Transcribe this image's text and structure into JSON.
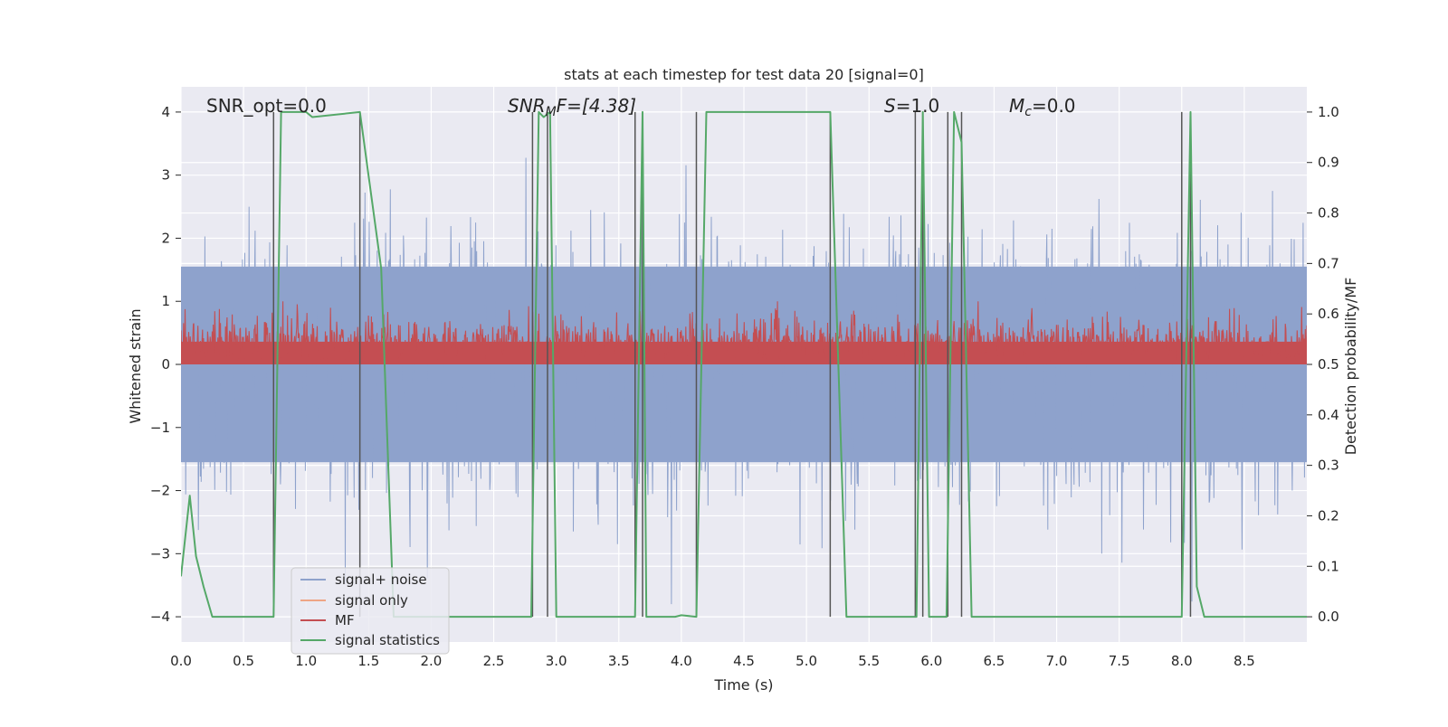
{
  "chart_data": {
    "type": "line",
    "title": "stats at each timestep for test data 20 [signal=0]",
    "xlabel": "Time (s)",
    "ylabel": "Whitened strain",
    "y2label": "Detection probability/MF",
    "xlim": [
      0.0,
      9.0
    ],
    "ylim": [
      -4.4,
      4.4
    ],
    "y2lim": [
      -0.05,
      1.05
    ],
    "x_ticks": [
      "0.0",
      "0.5",
      "1.0",
      "1.5",
      "2.0",
      "2.5",
      "3.0",
      "3.5",
      "4.0",
      "4.5",
      "5.0",
      "5.5",
      "6.0",
      "6.5",
      "7.0",
      "7.5",
      "8.0",
      "8.5"
    ],
    "y_ticks": [
      "4",
      "3",
      "2",
      "1",
      "0",
      "−1",
      "−2",
      "−3",
      "−4"
    ],
    "y2_ticks": [
      "1.0",
      "0.9",
      "0.8",
      "0.7",
      "0.6",
      "0.5",
      "0.4",
      "0.3",
      "0.2",
      "0.1",
      "0.0"
    ],
    "grid": true,
    "legend_position": "lower-left",
    "annotations": {
      "snr_opt": "SNR_opt=0.0",
      "snr_mf_main": "SNR",
      "snr_mf_sub": "M",
      "snr_mf_tail": "F=[4.38]",
      "s_main": "S",
      "s_tail": "=1.0",
      "mc_main": "M",
      "mc_sub": "c",
      "mc_tail": "=0.0"
    },
    "series": [
      {
        "name": "signal+ noise",
        "color": "#8ea2cc",
        "note": "whitened noise, amplitude ~±2, peaks to ±3.5"
      },
      {
        "name": "signal only",
        "color": "#eea585",
        "values": []
      },
      {
        "name": "MF",
        "color": "#c44e52",
        "axis": "right",
        "note": "fluctuates between 0.50 and 0.62"
      },
      {
        "name": "signal statistics",
        "color": "#55a868",
        "axis": "right",
        "x": [
          0.0,
          0.07,
          0.12,
          0.18,
          0.25,
          0.74,
          0.8,
          1.0,
          1.05,
          1.43,
          1.6,
          1.7,
          2.8,
          2.86,
          2.9,
          2.95,
          3.0,
          3.63,
          3.69,
          3.72,
          3.95,
          4.0,
          4.12,
          4.2,
          5.19,
          5.32,
          5.88,
          5.93,
          5.98,
          6.12,
          6.18,
          6.24,
          6.32,
          8.0,
          8.07,
          8.12,
          8.18,
          9.0
        ],
        "values": [
          0.08,
          0.24,
          0.12,
          0.06,
          0.0,
          0.0,
          1.0,
          1.0,
          0.99,
          1.0,
          0.69,
          0.0,
          0.0,
          1.0,
          0.99,
          1.0,
          0.0,
          0.0,
          1.0,
          0.0,
          0.0,
          0.003,
          0.0,
          1.0,
          1.0,
          0.0,
          0.0,
          1.0,
          0.0,
          0.0,
          1.0,
          0.94,
          0.0,
          0.0,
          1.0,
          0.06,
          0.0,
          0.0
        ]
      }
    ],
    "event_markers_x": [
      0.74,
      1.43,
      2.81,
      2.93,
      3.63,
      3.69,
      4.12,
      5.19,
      5.87,
      5.93,
      6.13,
      6.24,
      8.0,
      8.07
    ],
    "event_marker_color": "#555555",
    "background": "#eaeaf2"
  }
}
